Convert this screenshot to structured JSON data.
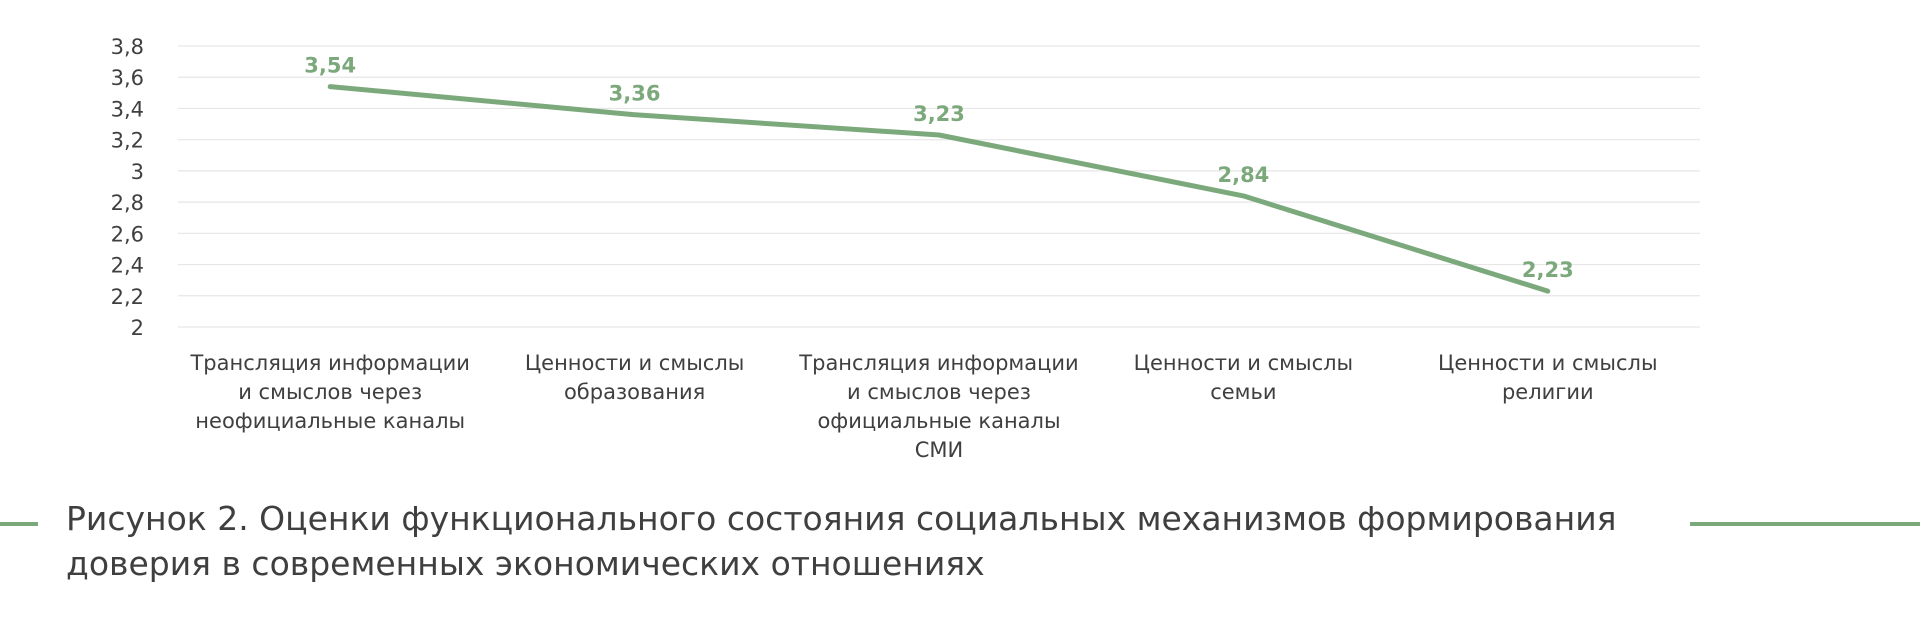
{
  "chart_data": {
    "type": "line",
    "categories": [
      [
        "Трансляция информации",
        "и смыслов через",
        "неофициальные каналы"
      ],
      [
        "Ценности и смыслы",
        "образования"
      ],
      [
        "Трансляция информации",
        "и смыслов через",
        "официальные каналы",
        "СМИ"
      ],
      [
        "Ценности и смыслы",
        "семьи"
      ],
      [
        "Ценности и смыслы",
        "религии"
      ]
    ],
    "series": [
      {
        "values": [
          3.54,
          3.36,
          3.23,
          2.84,
          2.23
        ],
        "data_labels": [
          "3,54",
          "3,36",
          "3,23",
          "2,84",
          "2,23"
        ]
      }
    ],
    "yticks": [
      2,
      2.2,
      2.4,
      2.6,
      2.8,
      3,
      3.2,
      3.4,
      3.6,
      3.8
    ],
    "ytick_labels": [
      "2",
      "2,2",
      "2,4",
      "2,6",
      "2,8",
      "3",
      "3,2",
      "3,4",
      "3,6",
      "3,8"
    ],
    "ylim": [
      2,
      3.8
    ],
    "grid": true,
    "legend": "none",
    "line_color": "#7ca97c",
    "grid_color": "#e6e6e6",
    "text_color": "#3f3f3f"
  },
  "caption": {
    "line1": "Рисунок 2. Оценки функционального состояния социальных механизмов формирования",
    "line2": "доверия в современных экономических отношениях"
  }
}
